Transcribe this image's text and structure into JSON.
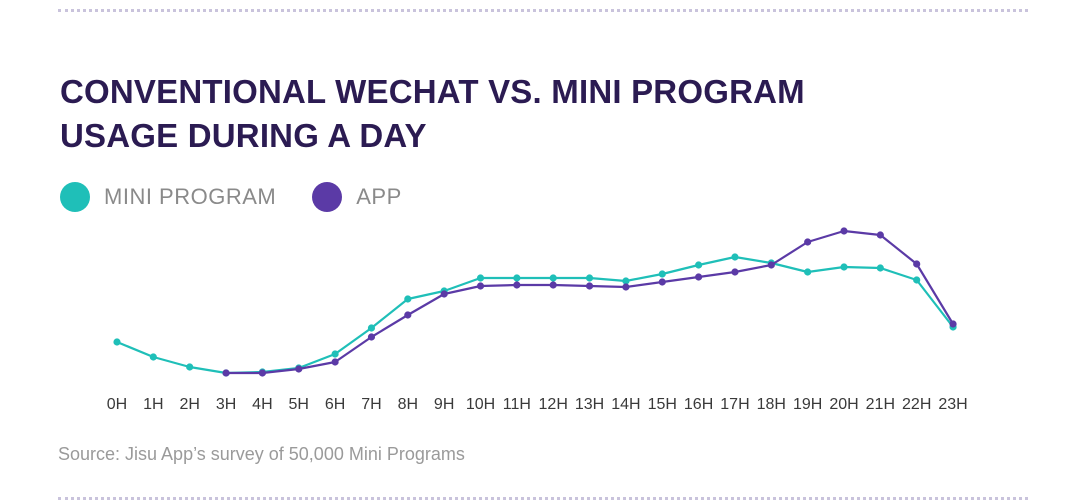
{
  "chart_data": {
    "type": "line",
    "title_lines": [
      "CONVENTIONAL WECHAT VS. MINI PROGRAM",
      "USAGE DURING A DAY"
    ],
    "categories": [
      "0H",
      "1H",
      "2H",
      "3H",
      "4H",
      "5H",
      "6H",
      "7H",
      "8H",
      "9H",
      "10H",
      "11H",
      "12H",
      "13H",
      "14H",
      "15H",
      "16H",
      "17H",
      "18H",
      "19H",
      "20H",
      "21H",
      "22H",
      "23H"
    ],
    "series": [
      {
        "name": "MINI PROGRAM",
        "color": "#1fbfb8",
        "values": [
          39,
          24,
          14,
          8,
          9,
          13,
          27,
          53,
          82,
          90,
          103,
          103,
          103,
          103,
          100,
          107,
          116,
          124,
          118,
          109,
          114,
          113,
          101,
          54
        ]
      },
      {
        "name": "APP",
        "color": "#5b3aa6",
        "values": [
          null,
          null,
          null,
          8,
          8,
          12,
          19,
          44,
          66,
          87,
          95,
          96,
          96,
          95,
          94,
          99,
          104,
          109,
          116,
          139,
          150,
          146,
          117,
          57
        ]
      }
    ],
    "ylim": [
      0,
      170
    ],
    "xlabel": "",
    "ylabel": "",
    "grid": false,
    "legend_position": "top-left"
  },
  "source_text": "Source: Jisu App’s survey of 50,000 Mini Programs"
}
